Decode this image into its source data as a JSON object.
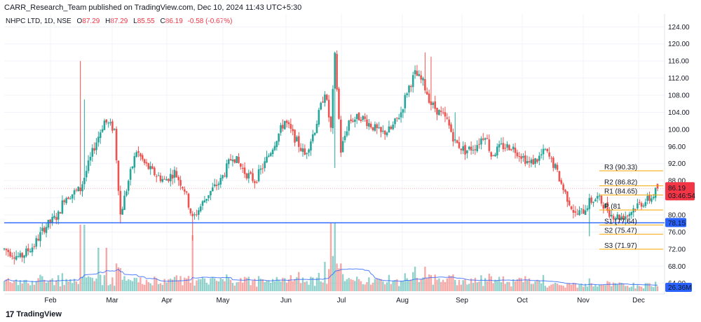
{
  "publish_line": "CARR_Research_Team published on TradingView.com, Dec 10, 2024 11:43 UTC+5:30",
  "legend": {
    "symbol": "NHPC LTD, 1D, NSE",
    "open_label": "O",
    "open": "87.29",
    "high_label": "H",
    "high": "87.29",
    "low_label": "L",
    "low": "85.55",
    "close_label": "C",
    "close": "86.19",
    "change": "-0.58 (-0.67%)"
  },
  "footer": {
    "logo": "17",
    "brand": "TradingView"
  },
  "chart_data": {
    "type": "candlestick",
    "y_axis": {
      "ylim": [
        61.5,
        127.0
      ],
      "ticks": [
        124,
        120,
        116,
        112,
        108,
        104,
        100,
        96,
        92,
        88,
        84,
        80,
        76,
        72,
        68,
        64
      ]
    },
    "x_axis": {
      "months": [
        "Feb",
        "Mar",
        "Apr",
        "May",
        "Jun",
        "Jul",
        "Aug",
        "Sep",
        "Oct",
        "Nov",
        "Dec"
      ]
    },
    "horizontal_line": {
      "value": 78.15,
      "label": "78.15",
      "color": "#2962ff"
    },
    "last_price": {
      "value": "86.19",
      "countdown": "03:46:54",
      "color": "#f23645"
    },
    "volume_ma_label": {
      "value": "26.36M",
      "color": "#2962ff"
    },
    "pivots": [
      {
        "label": "R3 (90.33)",
        "value": 90.33
      },
      {
        "label": "R2 (86.82)",
        "value": 86.82
      },
      {
        "label": "R1 (84.65)",
        "value": 84.65
      },
      {
        "label": "P (81",
        "value": 81.14
      },
      {
        "label": "S1 (77.64)",
        "value": 77.64
      },
      {
        "label": "S2 (75.47)",
        "value": 75.47
      },
      {
        "label": "S3 (71.97)",
        "value": 71.97
      }
    ],
    "anchors": [
      [
        0,
        72
      ],
      [
        8,
        70
      ],
      [
        15,
        73
      ],
      [
        20,
        77
      ],
      [
        27,
        80
      ],
      [
        30,
        84
      ],
      [
        38,
        86
      ],
      [
        45,
        96
      ],
      [
        50,
        102
      ],
      [
        55,
        100
      ],
      [
        58,
        80
      ],
      [
        62,
        88
      ],
      [
        66,
        95
      ],
      [
        70,
        92
      ],
      [
        74,
        90
      ],
      [
        80,
        88
      ],
      [
        85,
        90
      ],
      [
        90,
        86
      ],
      [
        94,
        79
      ],
      [
        98,
        82
      ],
      [
        102,
        85
      ],
      [
        108,
        88
      ],
      [
        114,
        94
      ],
      [
        120,
        90
      ],
      [
        125,
        88
      ],
      [
        130,
        92
      ],
      [
        135,
        97
      ],
      [
        140,
        102
      ],
      [
        145,
        98
      ],
      [
        150,
        94
      ],
      [
        155,
        100
      ],
      [
        160,
        109
      ],
      [
        163,
        100
      ],
      [
        165,
        117
      ],
      [
        168,
        95
      ],
      [
        172,
        102
      ],
      [
        178,
        103
      ],
      [
        183,
        101
      ],
      [
        188,
        99
      ],
      [
        193,
        100
      ],
      [
        198,
        104
      ],
      [
        201,
        109
      ],
      [
        205,
        113
      ],
      [
        209,
        111
      ],
      [
        213,
        106
      ],
      [
        217,
        104
      ],
      [
        221,
        102
      ],
      [
        225,
        97
      ],
      [
        230,
        95
      ],
      [
        235,
        96
      ],
      [
        240,
        99
      ],
      [
        243,
        94
      ],
      [
        248,
        96
      ],
      [
        253,
        96
      ],
      [
        258,
        94
      ],
      [
        262,
        92
      ],
      [
        266,
        93
      ],
      [
        270,
        95
      ],
      [
        275,
        91
      ],
      [
        279,
        86
      ],
      [
        282,
        83
      ],
      [
        285,
        80
      ],
      [
        289,
        81
      ],
      [
        292,
        83
      ],
      [
        296,
        84
      ],
      [
        300,
        82
      ],
      [
        303,
        80
      ],
      [
        307,
        79.5
      ],
      [
        311,
        80
      ],
      [
        315,
        82
      ],
      [
        319,
        83
      ],
      [
        323,
        84
      ],
      [
        326,
        86.2
      ]
    ],
    "candle_count": 327
  }
}
